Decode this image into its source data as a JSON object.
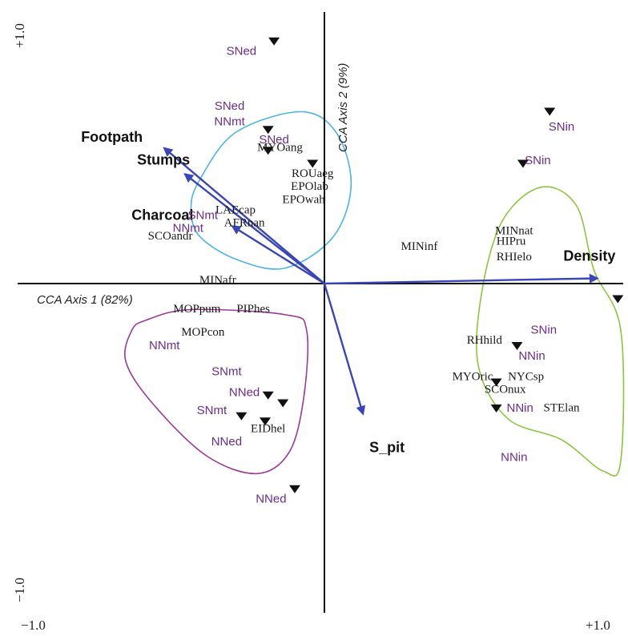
{
  "chart_data": {
    "type": "scatter",
    "subtype": "CCA biplot",
    "xlabel": "CCA Axis 1 (82%)",
    "ylabel": "CCA Axis 2 (9%)",
    "xlim": [
      -1.0,
      1.0
    ],
    "ylim": [
      -1.0,
      1.0
    ],
    "limit_labels": {
      "x_min": "−1.0",
      "x_max": "+1.0",
      "y_min": "−1.0",
      "y_max": "+1.0"
    },
    "colors": {
      "arrow": "#3a46b8",
      "site_text": "#6b2c8f",
      "axis": "#111111",
      "hull_blue": "#4ab4e6",
      "hull_green": "#8cc63f",
      "hull_purple": "#9b3b96"
    },
    "environmental_vectors": [
      {
        "name": "Footpath",
        "x": -0.54,
        "y": 0.52
      },
      {
        "name": "Stumps",
        "x": -0.47,
        "y": 0.42
      },
      {
        "name": "Charcoal",
        "x": -0.31,
        "y": 0.22
      },
      {
        "name": "Density",
        "x": 0.92,
        "y": 0.02
      },
      {
        "name": "S_pit",
        "x": 0.13,
        "y": -0.5
      }
    ],
    "species": [
      {
        "name": "MYOang",
        "x": -0.15,
        "y": 0.52
      },
      {
        "name": "ROUaeg",
        "x": -0.04,
        "y": 0.42
      },
      {
        "name": "EPOlab",
        "x": -0.05,
        "y": 0.37
      },
      {
        "name": "EPOwah",
        "x": -0.07,
        "y": 0.32
      },
      {
        "name": "LAEcap",
        "x": -0.3,
        "y": 0.28
      },
      {
        "name": "AFRnan",
        "x": -0.27,
        "y": 0.23
      },
      {
        "name": "SCOandr",
        "x": -0.52,
        "y": 0.18
      },
      {
        "name": "MINafr",
        "x": -0.36,
        "y": 0.01
      },
      {
        "name": "MINinf",
        "x": 0.32,
        "y": 0.14
      },
      {
        "name": "MINnat",
        "x": 0.64,
        "y": 0.2
      },
      {
        "name": "HIPru",
        "x": 0.63,
        "y": 0.16
      },
      {
        "name": "RHIelo",
        "x": 0.64,
        "y": 0.1
      },
      {
        "name": "MOPpum",
        "x": -0.43,
        "y": -0.1
      },
      {
        "name": "PIPhes",
        "x": -0.24,
        "y": -0.1
      },
      {
        "name": "MOPcon",
        "x": -0.41,
        "y": -0.19
      },
      {
        "name": "EIDhel",
        "x": -0.19,
        "y": -0.56
      },
      {
        "name": "RHhild",
        "x": 0.54,
        "y": -0.22
      },
      {
        "name": "MYOric",
        "x": 0.5,
        "y": -0.36
      },
      {
        "name": "NYCsp",
        "x": 0.68,
        "y": -0.36
      },
      {
        "name": "SCOnux",
        "x": 0.61,
        "y": -0.41
      },
      {
        "name": "STElan",
        "x": 0.8,
        "y": -0.48
      }
    ],
    "sites": [
      {
        "name": "SNed",
        "x": -0.28,
        "y": 0.89
      },
      {
        "name": "SNed",
        "x": -0.32,
        "y": 0.68
      },
      {
        "name": "NNmt",
        "x": -0.32,
        "y": 0.62
      },
      {
        "name": "SNed",
        "x": -0.17,
        "y": 0.55
      },
      {
        "name": "SNmt",
        "x": -0.41,
        "y": 0.26
      },
      {
        "name": "NNmt",
        "x": -0.46,
        "y": 0.21
      },
      {
        "name": "SNin",
        "x": 0.8,
        "y": 0.6
      },
      {
        "name": "SNin",
        "x": 0.72,
        "y": 0.47
      },
      {
        "name": "SNin",
        "x": 0.74,
        "y": -0.18
      },
      {
        "name": "NNin",
        "x": 0.7,
        "y": -0.28
      },
      {
        "name": "NNin",
        "x": 0.66,
        "y": -0.48
      },
      {
        "name": "NNin",
        "x": 0.64,
        "y": -0.67
      },
      {
        "name": "NNmt",
        "x": -0.54,
        "y": -0.24
      },
      {
        "name": "SNmt",
        "x": -0.33,
        "y": -0.34
      },
      {
        "name": "NNed",
        "x": -0.27,
        "y": -0.42
      },
      {
        "name": "SNmt",
        "x": -0.38,
        "y": -0.49
      },
      {
        "name": "NNed",
        "x": -0.33,
        "y": -0.61
      },
      {
        "name": "NNed",
        "x": -0.18,
        "y": -0.83
      }
    ],
    "triangle_markers": [
      {
        "x": -0.17,
        "y": 0.93
      },
      {
        "x": -0.19,
        "y": 0.59
      },
      {
        "x": -0.19,
        "y": 0.51
      },
      {
        "x": -0.04,
        "y": 0.46
      },
      {
        "x": 0.76,
        "y": 0.66
      },
      {
        "x": 0.67,
        "y": 0.46
      },
      {
        "x": 0.99,
        "y": -0.06
      },
      {
        "x": 0.65,
        "y": -0.24
      },
      {
        "x": 0.58,
        "y": -0.38
      },
      {
        "x": 0.58,
        "y": -0.48
      },
      {
        "x": -0.19,
        "y": -0.43
      },
      {
        "x": -0.14,
        "y": -0.46
      },
      {
        "x": -0.28,
        "y": -0.51
      },
      {
        "x": -0.2,
        "y": -0.53
      },
      {
        "x": -0.1,
        "y": -0.79
      }
    ],
    "hulls": [
      {
        "name": "blue",
        "color": "#4ab4e6",
        "points": [
          [
            -0.42,
            0.4
          ],
          [
            -0.3,
            0.58
          ],
          [
            -0.08,
            0.66
          ],
          [
            0.04,
            0.58
          ],
          [
            0.09,
            0.38
          ],
          [
            0.03,
            0.18
          ],
          [
            -0.13,
            0.06
          ],
          [
            -0.29,
            0.09
          ],
          [
            -0.42,
            0.18
          ],
          [
            -0.45,
            0.29
          ]
        ]
      },
      {
        "name": "green",
        "color": "#8cc63f",
        "points": [
          [
            0.73,
            0.37
          ],
          [
            0.85,
            0.3
          ],
          [
            0.91,
            0.05
          ],
          [
            1.0,
            -0.18
          ],
          [
            1.0,
            -0.68
          ],
          [
            0.94,
            -0.72
          ],
          [
            0.8,
            -0.6
          ],
          [
            0.62,
            -0.52
          ],
          [
            0.52,
            -0.32
          ],
          [
            0.53,
            -0.04
          ],
          [
            0.6,
            0.24
          ]
        ]
      },
      {
        "name": "purple",
        "color": "#9b3b96",
        "points": [
          [
            -0.6,
            -0.14
          ],
          [
            -0.45,
            -0.1
          ],
          [
            -0.13,
            -0.12
          ],
          [
            -0.06,
            -0.18
          ],
          [
            -0.07,
            -0.44
          ],
          [
            -0.12,
            -0.65
          ],
          [
            -0.23,
            -0.73
          ],
          [
            -0.4,
            -0.66
          ],
          [
            -0.58,
            -0.46
          ],
          [
            -0.67,
            -0.3
          ],
          [
            -0.65,
            -0.18
          ]
        ]
      }
    ]
  }
}
